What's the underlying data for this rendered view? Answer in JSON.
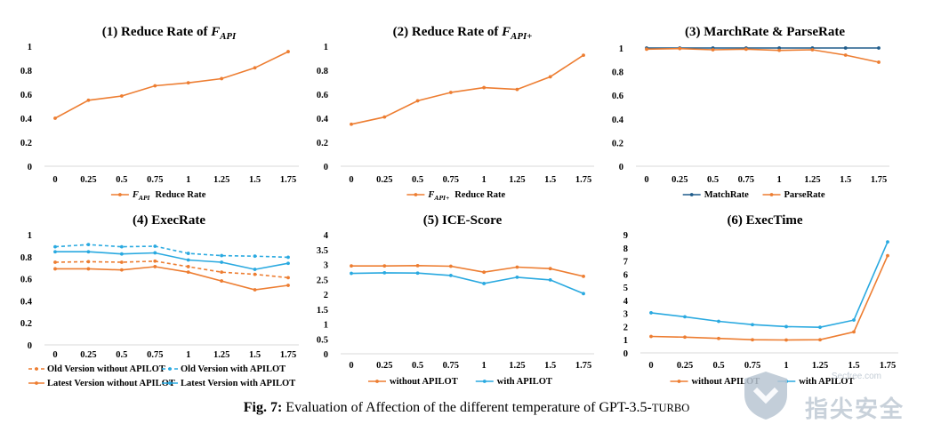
{
  "caption": {
    "label": "Fig. 7:",
    "text": "Evaluation of Affection of the different temperature of GPT-3.5-",
    "model_suffix": "TURBO"
  },
  "watermark": {
    "site": "Secfree.com",
    "name": "指尖安全",
    "icon": "shield-icon"
  },
  "colors": {
    "orange": "#ED7D31",
    "blue": "#29A9E0",
    "darkblue": "#1F5C8B",
    "axis": "#d9d9d9"
  },
  "chart_data": [
    {
      "type": "line",
      "title": "(1) Reduce Rate of ",
      "title_math": {
        "base": "F",
        "sub": "API"
      },
      "categories": [
        "0",
        "0.25",
        "0.5",
        "0.75",
        "1",
        "1.25",
        "1.5",
        "1.75"
      ],
      "ylim": [
        0,
        1
      ],
      "yticks": [
        "0",
        "0.2",
        "0.4",
        "0.6",
        "0.8",
        "1"
      ],
      "legend_position": "bottom",
      "series": [
        {
          "name": "Reduce Rate",
          "name_math": {
            "base": "F",
            "sub": "API"
          },
          "color": "orange",
          "dash": false,
          "values": [
            0.4,
            0.55,
            0.585,
            0.67,
            0.695,
            0.73,
            0.82,
            0.955
          ]
        }
      ]
    },
    {
      "type": "line",
      "title": "(2) Reduce Rate of ",
      "title_math": {
        "base": "F",
        "sub": "API+"
      },
      "categories": [
        "0",
        "0.25",
        "0.5",
        "0.75",
        "1",
        "1.25",
        "1.5",
        "1.75"
      ],
      "ylim": [
        0,
        1
      ],
      "yticks": [
        "0",
        "0.2",
        "0.4",
        "0.6",
        "0.8",
        "1"
      ],
      "legend_position": "bottom",
      "series": [
        {
          "name": "Reduce Rate",
          "name_math": {
            "base": "F",
            "sub": "API+"
          },
          "color": "orange",
          "dash": false,
          "values": [
            0.35,
            0.41,
            0.545,
            0.615,
            0.655,
            0.64,
            0.745,
            0.925
          ]
        }
      ]
    },
    {
      "type": "line",
      "title": "(3) MarchRate & ParseRate",
      "categories": [
        "0",
        "0.25",
        "0.5",
        "0.75",
        "1",
        "1.25",
        "1.5",
        "1.75"
      ],
      "ylim": [
        0,
        1
      ],
      "yticks": [
        "0",
        "0.2",
        "0.4",
        "0.6",
        "0.8",
        "1"
      ],
      "legend_position": "bottom",
      "series": [
        {
          "name": "MatchRate",
          "color": "darkblue",
          "dash": false,
          "values": [
            1.0,
            1.0,
            1.0,
            1.0,
            1.0,
            1.0,
            1.0,
            1.0
          ]
        },
        {
          "name": "ParseRate",
          "color": "orange",
          "dash": false,
          "values": [
            0.99,
            0.995,
            0.985,
            0.99,
            0.98,
            0.985,
            0.94,
            0.88
          ]
        }
      ]
    },
    {
      "type": "line",
      "title": "(4) ExecRate",
      "categories": [
        "0",
        "0.25",
        "0.5",
        "0.75",
        "1",
        "1.25",
        "1.5",
        "1.75"
      ],
      "ylim": [
        0,
        1
      ],
      "yticks": [
        "0",
        "0.2",
        "0.4",
        "0.6",
        "0.8",
        "1"
      ],
      "legend_position": "bottom",
      "series": [
        {
          "name": "Old Version without APILOT",
          "color": "orange",
          "dash": true,
          "values": [
            0.75,
            0.755,
            0.75,
            0.76,
            0.71,
            0.66,
            0.64,
            0.61
          ]
        },
        {
          "name": "Old Version with APILOT",
          "color": "blue",
          "dash": true,
          "values": [
            0.89,
            0.91,
            0.89,
            0.895,
            0.83,
            0.81,
            0.805,
            0.795
          ]
        },
        {
          "name": "Latest Version without APILOT",
          "color": "orange",
          "dash": false,
          "values": [
            0.69,
            0.69,
            0.68,
            0.71,
            0.66,
            0.58,
            0.5,
            0.54
          ]
        },
        {
          "name": "Latest Version with APILOT",
          "color": "blue",
          "dash": false,
          "values": [
            0.845,
            0.845,
            0.825,
            0.835,
            0.77,
            0.75,
            0.685,
            0.74
          ]
        }
      ]
    },
    {
      "type": "line",
      "title": "(5) ICE-Score",
      "categories": [
        "0",
        "0.25",
        "0.5",
        "0.75",
        "1",
        "1.25",
        "1.5",
        "1.75"
      ],
      "ylim": [
        0,
        4
      ],
      "yticks": [
        "0",
        "0.5",
        "1",
        "1.5",
        "2",
        "2.5",
        "3",
        "3.5",
        "4"
      ],
      "legend_position": "bottom",
      "series": [
        {
          "name": "without APILOT",
          "color": "orange",
          "dash": false,
          "values": [
            2.95,
            2.95,
            2.96,
            2.94,
            2.74,
            2.91,
            2.86,
            2.6
          ]
        },
        {
          "name": "with APILOT",
          "color": "blue",
          "dash": false,
          "values": [
            2.7,
            2.72,
            2.71,
            2.63,
            2.36,
            2.57,
            2.48,
            2.02
          ]
        }
      ]
    },
    {
      "type": "line",
      "title": "(6) ExecTime",
      "categories": [
        "0",
        "0.25",
        "0.5",
        "0.75",
        "1",
        "1.25",
        "1.5",
        "1.75"
      ],
      "ylim": [
        0,
        9
      ],
      "yticks": [
        "0",
        "1",
        "2",
        "3",
        "4",
        "5",
        "6",
        "7",
        "8",
        "9"
      ],
      "legend_position": "bottom",
      "series": [
        {
          "name": "without APILOT",
          "color": "orange",
          "dash": false,
          "values": [
            1.25,
            1.2,
            1.1,
            1.0,
            0.98,
            1.0,
            1.6,
            7.4
          ]
        },
        {
          "name": "with APILOT",
          "color": "blue",
          "dash": false,
          "values": [
            3.05,
            2.75,
            2.4,
            2.15,
            2.0,
            1.95,
            2.5,
            8.45
          ]
        }
      ]
    }
  ]
}
